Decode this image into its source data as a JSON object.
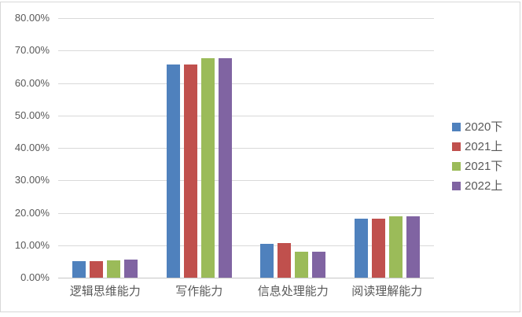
{
  "colors": {
    "background": "#ffffff",
    "chart_border": "#d8d8d8",
    "gridline": "#d9d9d9",
    "axis_line": "#c6c6c6",
    "label_text": "#595959"
  },
  "chart_data": {
    "type": "bar",
    "title": "",
    "xlabel": "",
    "ylabel": "",
    "categories": [
      "逻辑思维能力",
      "写作能力",
      "信息处理能力",
      "阅读理解能力"
    ],
    "series": [
      {
        "name": "2020下",
        "color": "#4f81bd",
        "values": [
          5.2,
          65.8,
          10.5,
          18.2
        ]
      },
      {
        "name": "2021上",
        "color": "#c0504d",
        "values": [
          5.2,
          65.8,
          10.6,
          18.3
        ]
      },
      {
        "name": "2021下",
        "color": "#9bbb59",
        "values": [
          5.4,
          67.7,
          8.0,
          18.8
        ]
      },
      {
        "name": "2022上",
        "color": "#8064a2",
        "values": [
          5.5,
          67.7,
          7.9,
          18.9
        ]
      }
    ],
    "ylim": [
      0,
      80
    ],
    "y_tick_step": 10,
    "y_tick_labels_top_to_bottom": [
      "80.00%",
      "70.00%",
      "60.00%",
      "50.00%",
      "40.00%",
      "30.00%",
      "20.00%",
      "10.00%",
      "0.00%"
    ],
    "grid": "horizontal",
    "legend_position": "right"
  }
}
